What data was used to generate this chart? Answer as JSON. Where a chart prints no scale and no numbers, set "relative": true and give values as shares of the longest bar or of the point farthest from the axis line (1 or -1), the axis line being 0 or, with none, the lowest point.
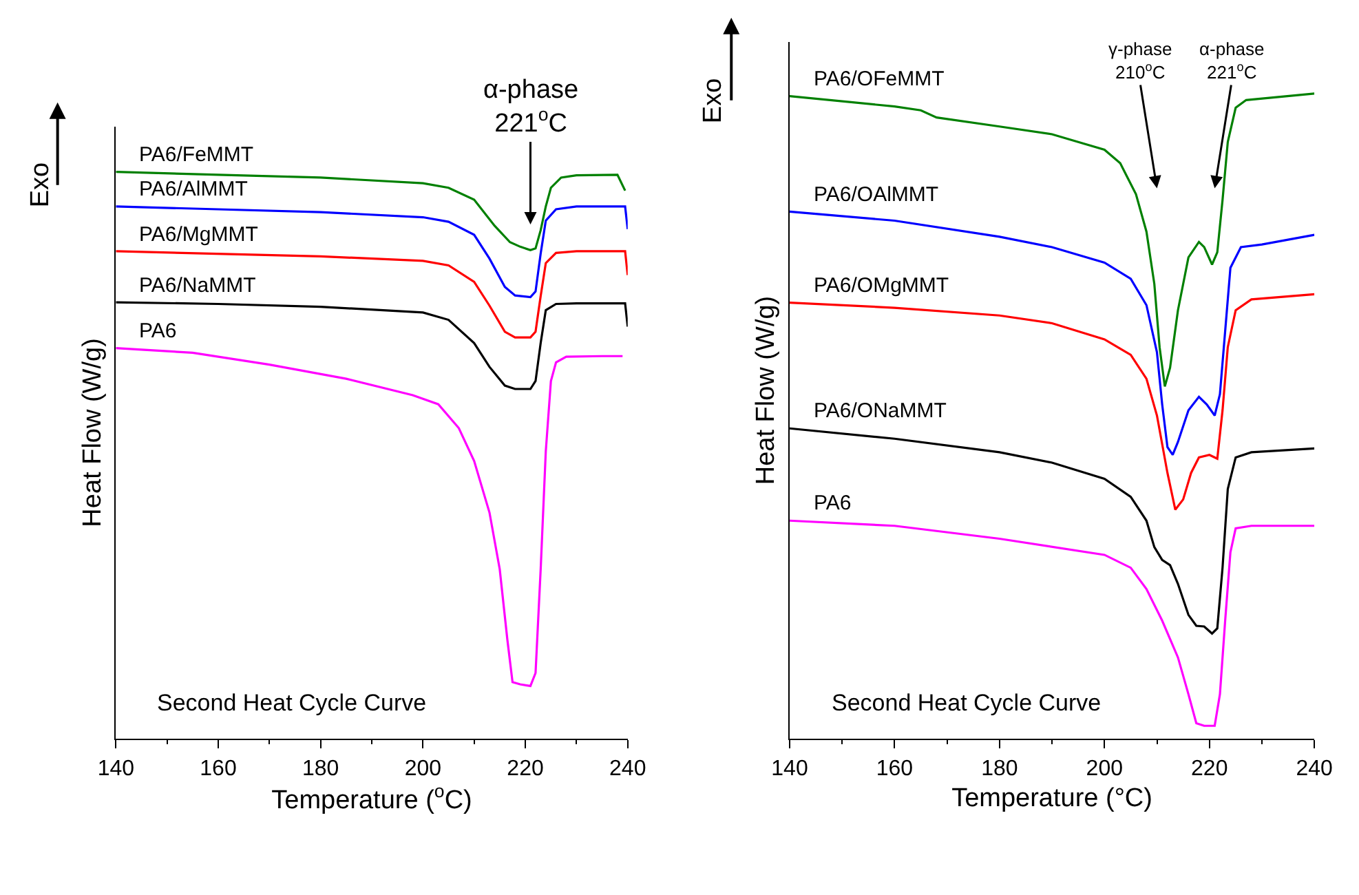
{
  "chart_data": [
    {
      "type": "line",
      "relative": true,
      "xlabel": "Temperature ($^{o}$C)",
      "ylabel": "Heat Flow (W/g)",
      "xlim": [
        140,
        240
      ],
      "xticks": [
        140,
        160,
        180,
        200,
        220,
        240
      ],
      "tick_labels": "x",
      "annotations": [
        "Exo",
        "Second Heat Cycle Curve",
        "α-phase\n221$^{o}$C"
      ],
      "series": [
        {
          "name": "PA6/FeMMT",
          "color": "#008000",
          "x": [
            140,
            160,
            180,
            200,
            205,
            210,
            214,
            217,
            219,
            221,
            222,
            223,
            224,
            225,
            227,
            230,
            238,
            239.5
          ],
          "values": [
            1.0,
            0.995,
            0.99,
            0.98,
            0.972,
            0.951,
            0.905,
            0.876,
            0.868,
            0.862,
            0.865,
            0.897,
            0.939,
            0.972,
            0.99,
            0.994,
            0.995,
            0.967
          ]
        },
        {
          "name": "PA6/AlMMT",
          "color": "#0000ff",
          "x": [
            140,
            160,
            180,
            200,
            205,
            210,
            213,
            216,
            218,
            221,
            222,
            223,
            224,
            226,
            230,
            239.5,
            240
          ],
          "values": [
            0.939,
            0.934,
            0.929,
            0.92,
            0.912,
            0.889,
            0.847,
            0.797,
            0.782,
            0.779,
            0.789,
            0.856,
            0.914,
            0.934,
            0.939,
            0.939,
            0.899
          ]
        },
        {
          "name": "PA6/MgMMT",
          "color": "#ff0000",
          "x": [
            140,
            180,
            200,
            205,
            210,
            213,
            216,
            218,
            221,
            222,
            223,
            224,
            226,
            230,
            239.5,
            240
          ],
          "values": [
            0.86,
            0.851,
            0.843,
            0.835,
            0.806,
            0.764,
            0.718,
            0.708,
            0.708,
            0.718,
            0.781,
            0.839,
            0.857,
            0.86,
            0.86,
            0.818
          ]
        },
        {
          "name": "PA6/NaMMT",
          "color": "#000000",
          "x": [
            140,
            160,
            180,
            200,
            205,
            210,
            213,
            216,
            218,
            221,
            222,
            223,
            224,
            226,
            230,
            239.5,
            240
          ],
          "values": [
            0.77,
            0.767,
            0.762,
            0.752,
            0.739,
            0.698,
            0.656,
            0.623,
            0.617,
            0.617,
            0.631,
            0.698,
            0.756,
            0.767,
            0.768,
            0.768,
            0.727
          ]
        },
        {
          "name": "PA6",
          "color": "#ff00ff",
          "x": [
            140,
            155,
            170,
            185,
            198,
            203,
            207,
            210,
            213,
            215,
            216.5,
            217.5,
            219,
            221,
            222,
            223,
            224,
            225,
            226,
            228,
            235,
            239
          ],
          "values": [
            0.689,
            0.681,
            0.66,
            0.635,
            0.606,
            0.59,
            0.548,
            0.49,
            0.399,
            0.299,
            0.174,
            0.1,
            0.096,
            0.093,
            0.116,
            0.299,
            0.507,
            0.631,
            0.664,
            0.674,
            0.675,
            0.675
          ]
        }
      ]
    },
    {
      "type": "line",
      "relative": true,
      "xlabel": "Temperature (°C)",
      "ylabel": "Heat Flow (W/g)",
      "xlim": [
        140,
        240
      ],
      "xticks": [
        140,
        160,
        180,
        200,
        220,
        240
      ],
      "tick_labels": "x",
      "annotations": [
        "Exo",
        "Second Heat Cycle Curve",
        "γ-phase\n210$^{o}$C",
        "α-phase\n221$^{o}$C"
      ],
      "series": [
        {
          "name": "PA6/OFeMMT",
          "color": "#008000",
          "x": [
            140,
            160,
            165,
            168,
            180,
            190,
            195,
            200,
            203,
            206,
            208,
            209.5,
            210.5,
            211.5,
            212.5,
            214,
            216,
            218,
            219,
            220.5,
            221.5,
            222.5,
            223.5,
            225,
            227,
            240
          ],
          "values": [
            0.996,
            0.98,
            0.974,
            0.963,
            0.949,
            0.937,
            0.925,
            0.913,
            0.892,
            0.844,
            0.786,
            0.705,
            0.607,
            0.546,
            0.575,
            0.664,
            0.746,
            0.77,
            0.762,
            0.735,
            0.754,
            0.835,
            0.925,
            0.978,
            0.99,
            1.0
          ]
        },
        {
          "name": "PA6/OAlMMT",
          "color": "#0000ff",
          "x": [
            140,
            160,
            180,
            190,
            200,
            205,
            208,
            210,
            211,
            212,
            213,
            214,
            216,
            218,
            219.5,
            221,
            222,
            223,
            224,
            226,
            230,
            240
          ],
          "values": [
            0.817,
            0.803,
            0.778,
            0.762,
            0.738,
            0.713,
            0.672,
            0.599,
            0.518,
            0.452,
            0.44,
            0.46,
            0.509,
            0.53,
            0.518,
            0.501,
            0.534,
            0.632,
            0.73,
            0.762,
            0.766,
            0.781
          ]
        },
        {
          "name": "PA6/OMgMMT",
          "color": "#ff0000",
          "x": [
            140,
            160,
            180,
            190,
            200,
            205,
            208,
            210,
            212,
            213.5,
            215,
            216.5,
            218,
            220,
            221.5,
            222.5,
            223.5,
            225,
            228,
            240
          ],
          "values": [
            0.676,
            0.668,
            0.656,
            0.644,
            0.619,
            0.595,
            0.558,
            0.501,
            0.412,
            0.355,
            0.371,
            0.412,
            0.436,
            0.44,
            0.434,
            0.509,
            0.607,
            0.664,
            0.681,
            0.689
          ]
        },
        {
          "name": "PA6/ONaMMT",
          "color": "#000000",
          "x": [
            140,
            160,
            180,
            190,
            200,
            205,
            208,
            209.5,
            211,
            212.5,
            214,
            216,
            217.5,
            219,
            220.5,
            221.5,
            222.5,
            223.5,
            225,
            228,
            240
          ],
          "values": [
            0.481,
            0.465,
            0.444,
            0.428,
            0.403,
            0.375,
            0.338,
            0.297,
            0.277,
            0.269,
            0.24,
            0.192,
            0.175,
            0.174,
            0.163,
            0.171,
            0.265,
            0.387,
            0.436,
            0.444,
            0.45
          ]
        },
        {
          "name": "PA6",
          "color": "#ff00ff",
          "x": [
            140,
            160,
            180,
            200,
            205,
            208,
            211,
            214,
            216,
            217.5,
            219,
            221,
            222,
            223,
            224,
            225,
            228,
            240
          ],
          "values": [
            0.338,
            0.33,
            0.31,
            0.285,
            0.265,
            0.232,
            0.183,
            0.126,
            0.069,
            0.024,
            0.02,
            0.02,
            0.069,
            0.183,
            0.289,
            0.326,
            0.33,
            0.33
          ]
        }
      ]
    }
  ]
}
